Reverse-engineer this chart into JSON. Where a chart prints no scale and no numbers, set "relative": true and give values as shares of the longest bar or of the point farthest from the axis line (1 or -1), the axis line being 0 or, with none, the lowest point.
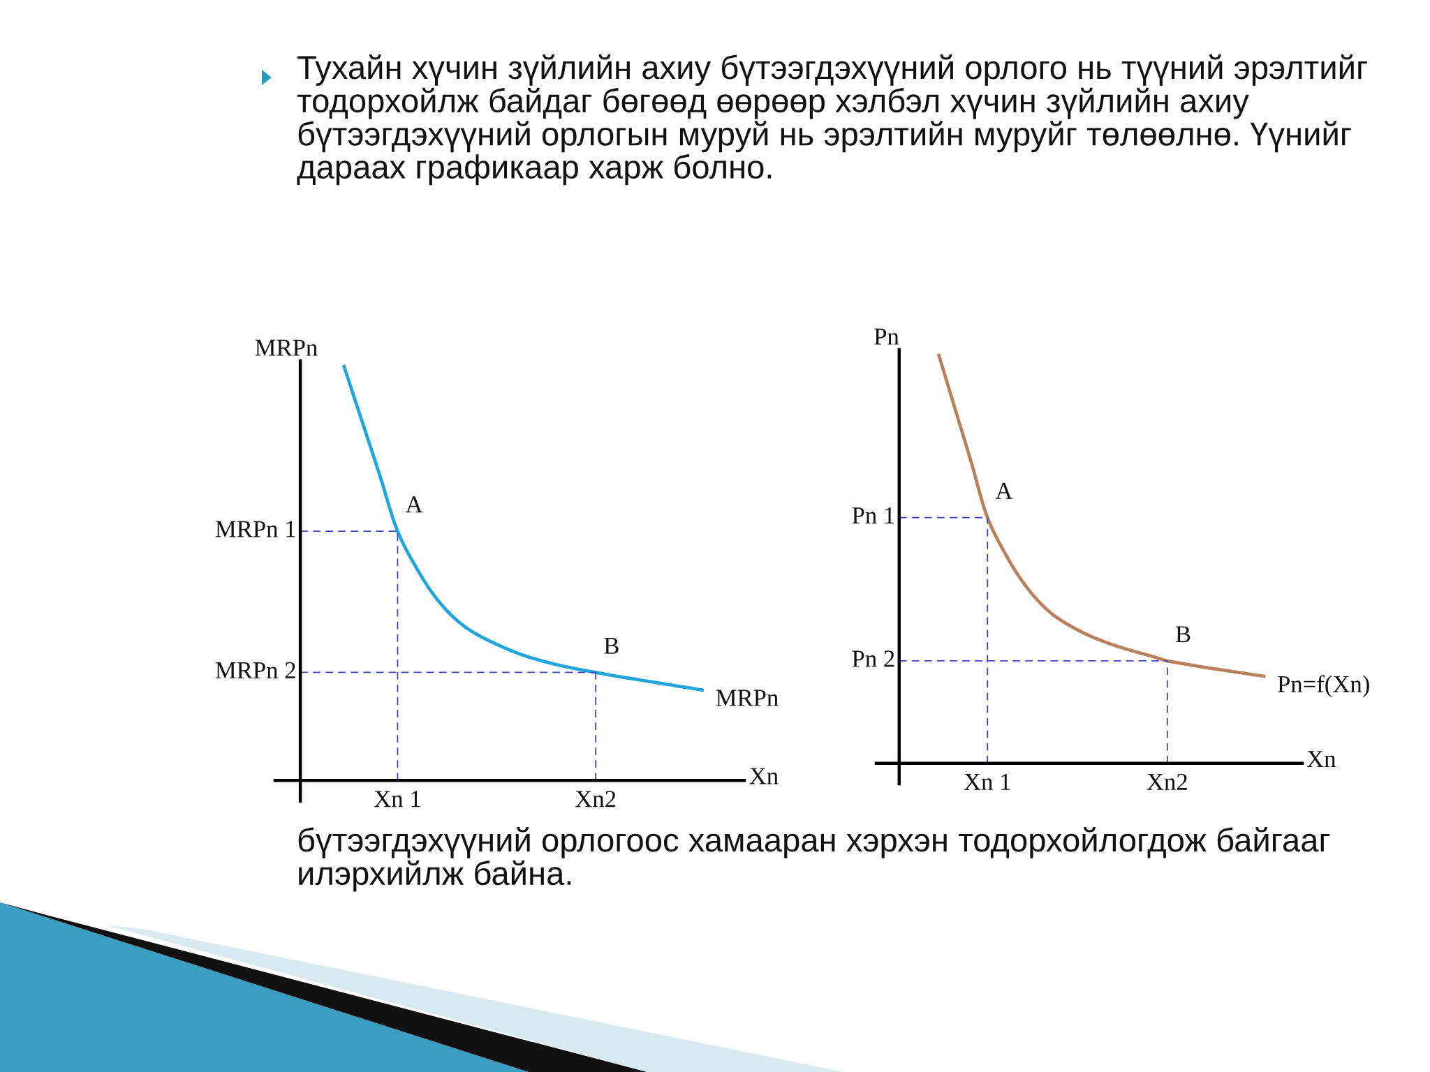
{
  "chart_data": [
    {
      "type": "line",
      "relative": true,
      "xlabel": "Xn",
      "ylabel": "MRPn",
      "categories": [
        null,
        null,
        null,
        "Xn 1",
        null,
        null,
        null,
        null,
        null,
        null,
        null,
        null,
        null,
        null,
        "Xn2",
        null,
        null,
        null,
        null,
        null,
        null
      ],
      "series": [
        {
          "name": "MRPn",
          "color": "#22a5dd",
          "values": [
            1,
            0.868,
            0.736,
            0.6,
            0.515,
            0.447,
            0.397,
            0.362,
            0.338,
            0.318,
            0.301,
            0.288,
            0.277,
            0.268,
            0.26,
            0.252,
            0.245,
            0.238,
            0.231,
            0.224,
            0.217
          ]
        }
      ],
      "ref_lines": [
        {
          "axis": "y",
          "value": 0.6,
          "label": "MRPn 1",
          "color": "#4040c8",
          "line_style": "dashed"
        },
        {
          "axis": "y",
          "value": 0.26,
          "label": "MRPn 2",
          "color": "#4040c8",
          "line_style": "dashed"
        },
        {
          "axis": "x",
          "value": "Xn 1",
          "color": "#4040c8",
          "line_style": "dashed"
        },
        {
          "axis": "x",
          "value": "Xn2",
          "color": "#4040c8",
          "line_style": "dashed"
        }
      ],
      "annotations": [
        "Тухайн хүчин зүйлийн ахиу бүтээгдэхүүний орлого нь түүний эрэлтийг тодорхойлж байдаг бөгөөд өөрөөр хэлбэл хүчин зүйлийн ахиу бүтээгдэхүүний орлогын муруй нь эрэлтийн муруйг төлөөлнө. Үүнийг дараах графикаар харж болно.",
        {
          "text": "A",
          "x": "Xn 1",
          "y": 0.6
        },
        {
          "text": "B",
          "x": "Xn2",
          "y": 0.26
        }
      ]
    },
    {
      "type": "line",
      "relative": true,
      "xlabel": "Xn",
      "ylabel": "Pn",
      "categories": [
        null,
        null,
        null,
        "Xn 1",
        null,
        null,
        null,
        null,
        null,
        null,
        null,
        null,
        null,
        null,
        "Xn2",
        null,
        null,
        null,
        null,
        null,
        null
      ],
      "series": [
        {
          "name": "Pn=f(Xn)",
          "color": "#b9805e",
          "values": [
            1,
            0.868,
            0.736,
            0.6,
            0.518,
            0.452,
            0.401,
            0.363,
            0.337,
            0.316,
            0.299,
            0.285,
            0.273,
            0.262,
            0.25,
            0.243,
            0.236,
            0.23,
            0.224,
            0.218,
            0.212
          ]
        }
      ],
      "ref_lines": [
        {
          "axis": "y",
          "value": 0.6,
          "label": "Pn 1",
          "color": "#4040c8",
          "line_style": "dashed"
        },
        {
          "axis": "y",
          "value": 0.25,
          "label": "Pn 2",
          "color": "#4040c8",
          "line_style": "dashed"
        },
        {
          "axis": "x",
          "value": "Xn 1",
          "color": "#4040c8",
          "line_style": "dashed"
        },
        {
          "axis": "x",
          "value": "Xn2",
          "color": "#4040c8",
          "line_style": "dashed"
        }
      ],
      "annotations": [
        {
          "text": "A",
          "x": "Xn 1",
          "y": 0.6
        },
        {
          "text": "B",
          "x": "Xn2",
          "y": 0.25
        },
        "бүтээгдэхүүний орлогоос хамааран хэрхэн тодорхойлогдож байгааг илэрхийлж байна."
      ]
    }
  ]
}
